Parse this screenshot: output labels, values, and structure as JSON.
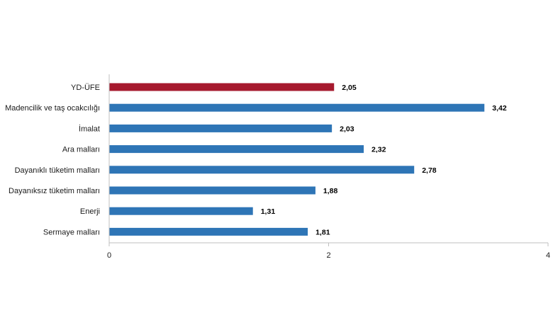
{
  "chart_data": {
    "type": "bar",
    "orientation": "horizontal",
    "categories": [
      "YD-ÜFE",
      "Madencilik ve taş ocakcılığı",
      "İmalat",
      "Ara malları",
      "Dayanıklı tüketim malları",
      "Dayanıksız tüketim malları",
      "Enerji",
      "Sermaye malları"
    ],
    "values": [
      2.05,
      3.42,
      2.03,
      2.32,
      2.78,
      1.88,
      1.31,
      1.81
    ],
    "value_labels": [
      "2,05",
      "3,42",
      "2,03",
      "2,32",
      "2,78",
      "1,88",
      "1,31",
      "1,81"
    ],
    "bar_colors": [
      "#A6192E",
      "#2E75B6",
      "#2E75B6",
      "#2E75B6",
      "#2E75B6",
      "#2E75B6",
      "#2E75B6",
      "#2E75B6"
    ],
    "xlim": [
      0,
      4
    ],
    "x_ticks": [
      0,
      2,
      4
    ],
    "x_tick_labels": [
      "0",
      "2",
      "4"
    ],
    "grid": false,
    "title": "",
    "xlabel": "",
    "ylabel": ""
  }
}
